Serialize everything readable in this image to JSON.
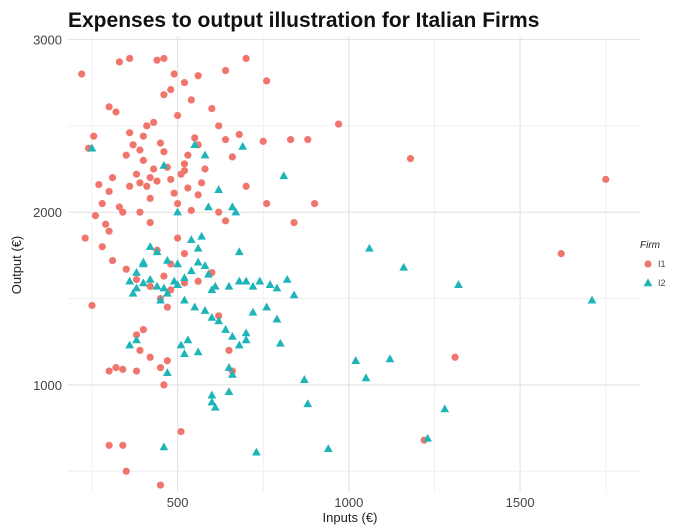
{
  "chart_data": {
    "type": "scatter",
    "title": "Expenses to output illustration for Italian Firms",
    "xlabel": "Inputs (€)",
    "ylabel": "Output (€)",
    "xlim": [
      180,
      1850
    ],
    "ylim": [
      380,
      3020
    ],
    "xticks": [
      500,
      1000,
      1500
    ],
    "yticks": [
      1000,
      2000,
      3000
    ],
    "grid": true,
    "legend": {
      "title": "Firm",
      "position": "right",
      "entries": [
        "I1",
        "I2"
      ]
    },
    "colors": {
      "I1": "#F0766D",
      "I2": "#1DB5B8"
    },
    "series": [
      {
        "name": "I1",
        "shape": "circle",
        "points": [
          [
            220,
            2800
          ],
          [
            240,
            2370
          ],
          [
            255,
            2440
          ],
          [
            270,
            2160
          ],
          [
            280,
            2050
          ],
          [
            300,
            2610
          ],
          [
            320,
            2580
          ],
          [
            300,
            2120
          ],
          [
            310,
            2200
          ],
          [
            330,
            2030
          ],
          [
            350,
            2330
          ],
          [
            360,
            2460
          ],
          [
            370,
            2390
          ],
          [
            380,
            2220
          ],
          [
            390,
            2170
          ],
          [
            400,
            2300
          ],
          [
            410,
            2150
          ],
          [
            420,
            2080
          ],
          [
            430,
            2250
          ],
          [
            440,
            2180
          ],
          [
            450,
            2400
          ],
          [
            460,
            2350
          ],
          [
            470,
            2260
          ],
          [
            480,
            2190
          ],
          [
            490,
            2110
          ],
          [
            500,
            2050
          ],
          [
            510,
            2220
          ],
          [
            520,
            2280
          ],
          [
            530,
            2140
          ],
          [
            540,
            2010
          ],
          [
            550,
            2430
          ],
          [
            560,
            2390
          ],
          [
            570,
            2170
          ],
          [
            580,
            2250
          ],
          [
            600,
            2600
          ],
          [
            620,
            2500
          ],
          [
            640,
            2420
          ],
          [
            660,
            2320
          ],
          [
            680,
            2450
          ],
          [
            700,
            2150
          ],
          [
            330,
            2870
          ],
          [
            360,
            2890
          ],
          [
            440,
            2880
          ],
          [
            460,
            2890
          ],
          [
            490,
            2800
          ],
          [
            520,
            2750
          ],
          [
            560,
            2790
          ],
          [
            640,
            2820
          ],
          [
            700,
            2890
          ],
          [
            760,
            2760
          ],
          [
            750,
            2410
          ],
          [
            830,
            2420
          ],
          [
            880,
            2420
          ],
          [
            970,
            2510
          ],
          [
            1180,
            2310
          ],
          [
            1750,
            2190
          ],
          [
            760,
            2050
          ],
          [
            900,
            2050
          ],
          [
            840,
            1940
          ],
          [
            1620,
            1760
          ],
          [
            230,
            1850
          ],
          [
            260,
            1980
          ],
          [
            290,
            1930
          ],
          [
            310,
            1720
          ],
          [
            350,
            1670
          ],
          [
            380,
            1610
          ],
          [
            420,
            1570
          ],
          [
            460,
            1630
          ],
          [
            480,
            1550
          ],
          [
            520,
            1590
          ],
          [
            560,
            1600
          ],
          [
            450,
            1500
          ],
          [
            470,
            1450
          ],
          [
            400,
            1320
          ],
          [
            380,
            1290
          ],
          [
            390,
            1200
          ],
          [
            420,
            1160
          ],
          [
            470,
            1140
          ],
          [
            620,
            1400
          ],
          [
            650,
            1200
          ],
          [
            660,
            1080
          ],
          [
            300,
            1080
          ],
          [
            320,
            1100
          ],
          [
            340,
            1090
          ],
          [
            380,
            1080
          ],
          [
            450,
            1100
          ],
          [
            460,
            1000
          ],
          [
            250,
            1460
          ],
          [
            300,
            650
          ],
          [
            340,
            650
          ],
          [
            350,
            500
          ],
          [
            450,
            420
          ],
          [
            510,
            730
          ],
          [
            1220,
            680
          ],
          [
            1310,
            1160
          ],
          [
            420,
            1940
          ],
          [
            390,
            2000
          ],
          [
            440,
            1780
          ],
          [
            480,
            1700
          ],
          [
            600,
            1650
          ],
          [
            640,
            1950
          ],
          [
            620,
            2000
          ],
          [
            500,
            1850
          ],
          [
            520,
            1760
          ],
          [
            560,
            2100
          ],
          [
            360,
            2150
          ],
          [
            340,
            2000
          ],
          [
            300,
            1890
          ],
          [
            280,
            1800
          ],
          [
            410,
            2500
          ],
          [
            430,
            2520
          ],
          [
            500,
            2560
          ],
          [
            540,
            2650
          ],
          [
            460,
            2680
          ],
          [
            480,
            2710
          ],
          [
            520,
            2240
          ],
          [
            530,
            2330
          ],
          [
            390,
            2360
          ],
          [
            400,
            2440
          ],
          [
            420,
            2200
          ]
        ]
      },
      {
        "name": "I2",
        "shape": "triangle",
        "points": [
          [
            250,
            2370
          ],
          [
            460,
            2270
          ],
          [
            550,
            2390
          ],
          [
            580,
            2330
          ],
          [
            690,
            2380
          ],
          [
            620,
            2130
          ],
          [
            590,
            2030
          ],
          [
            660,
            2030
          ],
          [
            500,
            2000
          ],
          [
            810,
            2210
          ],
          [
            670,
            2000
          ],
          [
            540,
            1840
          ],
          [
            570,
            1860
          ],
          [
            560,
            1790
          ],
          [
            500,
            1700
          ],
          [
            470,
            1720
          ],
          [
            440,
            1770
          ],
          [
            420,
            1800
          ],
          [
            400,
            1700
          ],
          [
            380,
            1650
          ],
          [
            680,
            1770
          ],
          [
            700,
            1600
          ],
          [
            720,
            1570
          ],
          [
            740,
            1600
          ],
          [
            770,
            1580
          ],
          [
            790,
            1560
          ],
          [
            820,
            1610
          ],
          [
            840,
            1520
          ],
          [
            680,
            1600
          ],
          [
            650,
            1570
          ],
          [
            610,
            1570
          ],
          [
            600,
            1550
          ],
          [
            590,
            1640
          ],
          [
            580,
            1690
          ],
          [
            560,
            1710
          ],
          [
            540,
            1660
          ],
          [
            520,
            1620
          ],
          [
            500,
            1580
          ],
          [
            490,
            1600
          ],
          [
            470,
            1530
          ],
          [
            450,
            1490
          ],
          [
            460,
            1560
          ],
          [
            440,
            1570
          ],
          [
            420,
            1610
          ],
          [
            400,
            1590
          ],
          [
            380,
            1560
          ],
          [
            370,
            1530
          ],
          [
            360,
            1600
          ],
          [
            520,
            1490
          ],
          [
            550,
            1450
          ],
          [
            580,
            1430
          ],
          [
            600,
            1390
          ],
          [
            620,
            1370
          ],
          [
            640,
            1320
          ],
          [
            660,
            1280
          ],
          [
            680,
            1230
          ],
          [
            700,
            1260
          ],
          [
            720,
            1420
          ],
          [
            760,
            1450
          ],
          [
            790,
            1380
          ],
          [
            800,
            1240
          ],
          [
            650,
            1100
          ],
          [
            660,
            1060
          ],
          [
            700,
            1300
          ],
          [
            510,
            1230
          ],
          [
            530,
            1260
          ],
          [
            560,
            1190
          ],
          [
            470,
            1070
          ],
          [
            520,
            1180
          ],
          [
            600,
            940
          ],
          [
            610,
            870
          ],
          [
            600,
            900
          ],
          [
            650,
            960
          ],
          [
            870,
            1030
          ],
          [
            880,
            890
          ],
          [
            1020,
            1140
          ],
          [
            1050,
            1040
          ],
          [
            1120,
            1150
          ],
          [
            1060,
            1790
          ],
          [
            1160,
            1680
          ],
          [
            1320,
            1580
          ],
          [
            1710,
            1490
          ],
          [
            1280,
            860
          ],
          [
            1230,
            690
          ],
          [
            940,
            630
          ],
          [
            730,
            610
          ],
          [
            460,
            640
          ],
          [
            360,
            1230
          ],
          [
            380,
            1260
          ],
          [
            400,
            1710
          ]
        ]
      }
    ]
  }
}
